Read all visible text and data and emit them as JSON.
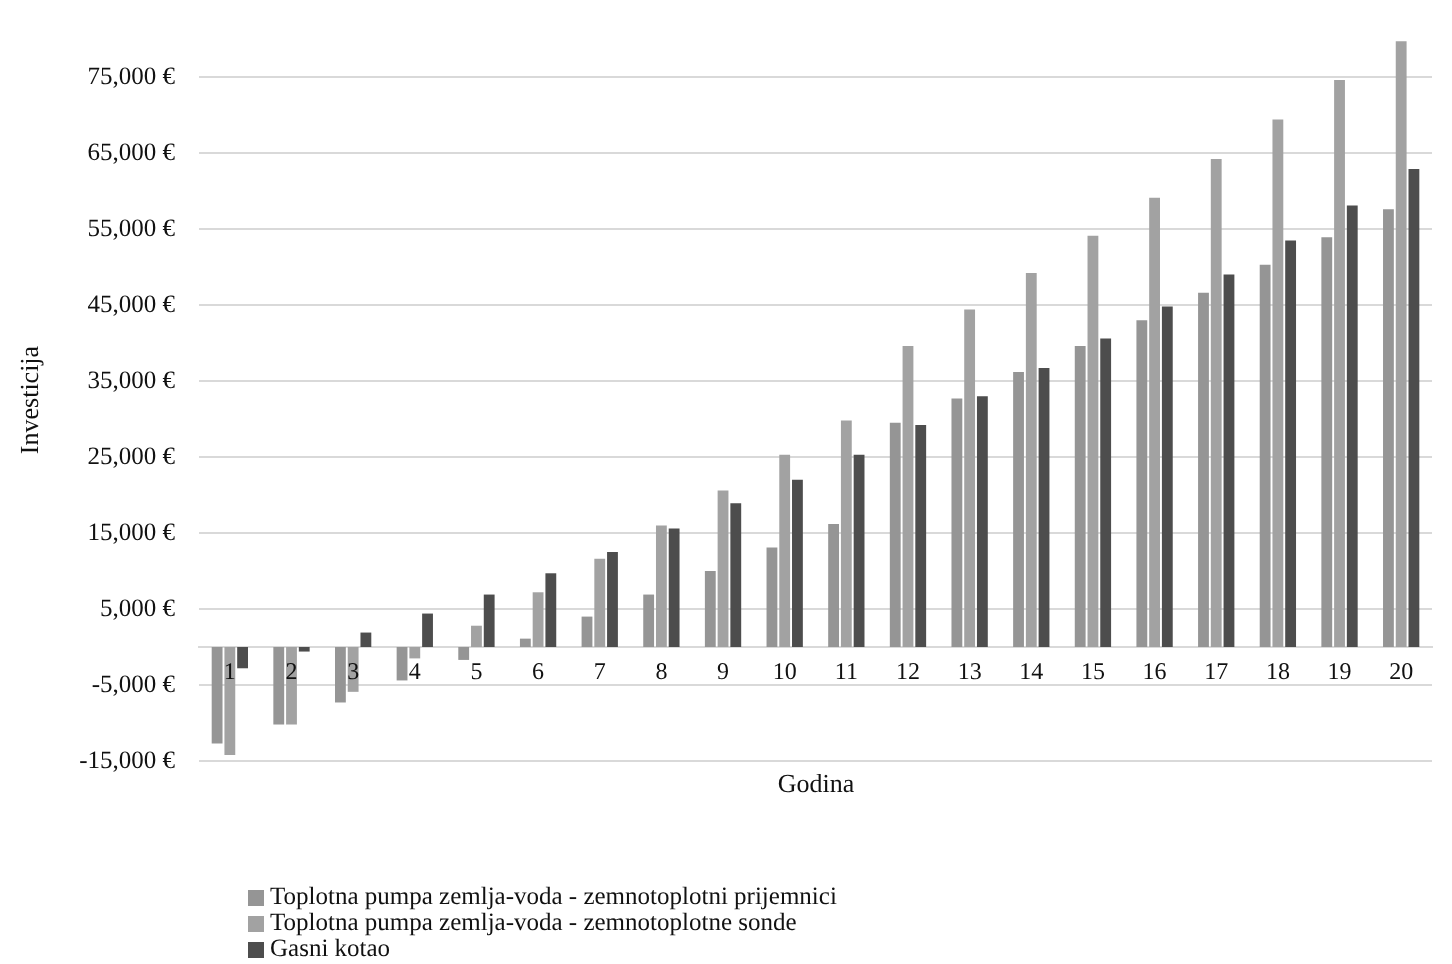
{
  "chart_data": {
    "type": "bar",
    "xlabel": "Godina",
    "ylabel": "Investicija",
    "categories": [
      "1",
      "2",
      "3",
      "4",
      "5",
      "6",
      "7",
      "8",
      "9",
      "10",
      "11",
      "12",
      "13",
      "14",
      "15",
      "16",
      "17",
      "18",
      "19",
      "20"
    ],
    "series": [
      {
        "name": "Toplotna pumpa zemlja-voda - zemnotoplotni prijemnici",
        "color": "#959595",
        "values": [
          -12700,
          -10200,
          -7300,
          -4400,
          -1700,
          1100,
          4000,
          6900,
          10000,
          13100,
          16200,
          29500,
          32700,
          36200,
          39600,
          43000,
          46600,
          50300,
          53900,
          57600
        ]
      },
      {
        "name": "Toplotna pumpa zemlja-voda - zemnotoplotne sonde",
        "color": "#a2a2a2",
        "values": [
          -14200,
          -10200,
          -5900,
          -1500,
          2800,
          7200,
          11600,
          16000,
          20600,
          25300,
          29800,
          39600,
          44400,
          49200,
          54100,
          59100,
          64200,
          69400,
          74600,
          79700
        ]
      },
      {
        "name": "Gasni kotao",
        "color": "#4d4d4d",
        "values": [
          -2800,
          -600,
          1900,
          4400,
          6900,
          9700,
          12500,
          15600,
          18900,
          22000,
          25300,
          29200,
          33000,
          36700,
          40600,
          44800,
          49000,
          53500,
          58100,
          62900
        ]
      }
    ],
    "ylim": [
      -15000,
      80000
    ],
    "yticks": [
      {
        "value": -15000,
        "label": "-15,000 €"
      },
      {
        "value": -5000,
        "label": "-5,000 €"
      },
      {
        "value": 5000,
        "label": "5,000 €"
      },
      {
        "value": 15000,
        "label": "15,000 €"
      },
      {
        "value": 25000,
        "label": "25,000 €"
      },
      {
        "value": 35000,
        "label": "35,000 €"
      },
      {
        "value": 45000,
        "label": "45,000 €"
      },
      {
        "value": 55000,
        "label": "55,000 €"
      },
      {
        "value": 65000,
        "label": "65,000 €"
      },
      {
        "value": 75000,
        "label": "75,000 €"
      }
    ],
    "grid": "y",
    "legend": "bottom left"
  }
}
